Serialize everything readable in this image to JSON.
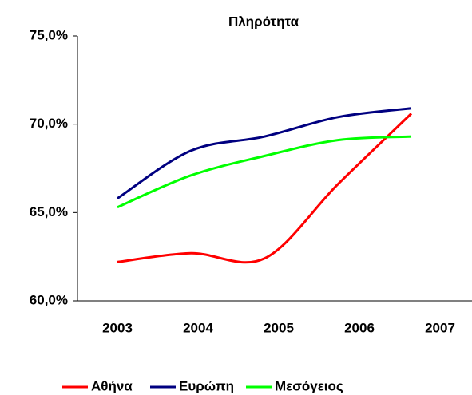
{
  "chart_data": {
    "type": "line",
    "title": "Πληρότητα",
    "categories": [
      "2003",
      "2004",
      "2005",
      "2006",
      "2007"
    ],
    "series": [
      {
        "name": "Αθήνα",
        "color": "#ff0000",
        "values": [
          62.2,
          62.7,
          62.4,
          66.6,
          70.6
        ]
      },
      {
        "name": "Ευρώπη",
        "color": "#000080",
        "values": [
          65.8,
          68.5,
          69.3,
          70.4,
          70.9
        ]
      },
      {
        "name": "Μεσόγειος",
        "color": "#00ff00",
        "values": [
          65.3,
          67.1,
          68.2,
          69.1,
          69.3
        ]
      }
    ],
    "ylim": [
      60,
      75
    ],
    "yticks": [
      {
        "value": 60,
        "label": "60,0%"
      },
      {
        "value": 65,
        "label": "65,0%"
      },
      {
        "value": 70,
        "label": "70,0%"
      },
      {
        "value": 75,
        "label": "75,0%"
      }
    ],
    "legend": "bottom"
  }
}
